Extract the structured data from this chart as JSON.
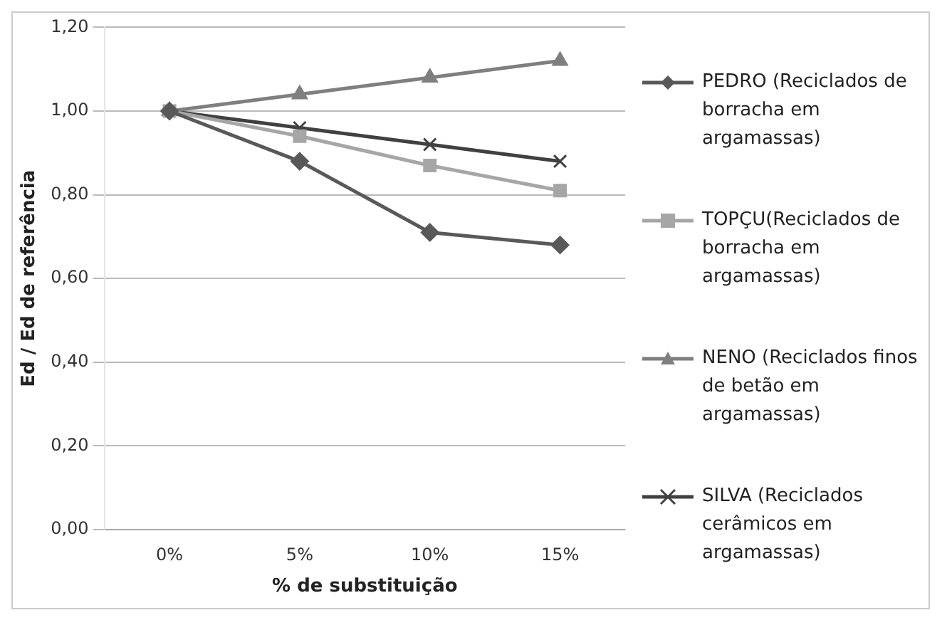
{
  "chart_data": {
    "type": "line",
    "xlabel": "% de substituição",
    "ylabel": "Ed / Ed de referência",
    "categories": [
      "0%",
      "5%",
      "10%",
      "15%"
    ],
    "series": [
      {
        "name": "PEDRO (Reciclados de borracha em argamassas)",
        "color": "#595959",
        "marker": "diamond",
        "values": [
          1.0,
          0.88,
          0.71,
          0.68
        ]
      },
      {
        "name": "TOPÇU(Reciclados de borracha em argamassas)",
        "color": "#a6a6a6",
        "marker": "square",
        "values": [
          1.0,
          0.94,
          0.87,
          0.81
        ]
      },
      {
        "name": "NENO (Reciclados finos de betão em argamassas)",
        "color": "#7f7f7f",
        "marker": "triangle",
        "values": [
          1.0,
          1.04,
          1.08,
          1.12
        ]
      },
      {
        "name": "SILVA (Reciclados cerâmicos em argamassas)",
        "color": "#404040",
        "marker": "cross",
        "values": [
          1.0,
          0.96,
          0.92,
          0.88
        ]
      }
    ],
    "ylim": [
      0,
      1.2
    ],
    "yticks": [
      {
        "value": 0,
        "label": "0,00"
      },
      {
        "value": 0.2,
        "label": "0,20"
      },
      {
        "value": 0.4,
        "label": "0,40"
      },
      {
        "value": 0.6,
        "label": "0,60"
      },
      {
        "value": 0.8,
        "label": "0,80"
      },
      {
        "value": 1,
        "label": "1,00"
      },
      {
        "value": 1.2,
        "label": "1,20"
      }
    ],
    "grid": "y",
    "legend": "right"
  }
}
